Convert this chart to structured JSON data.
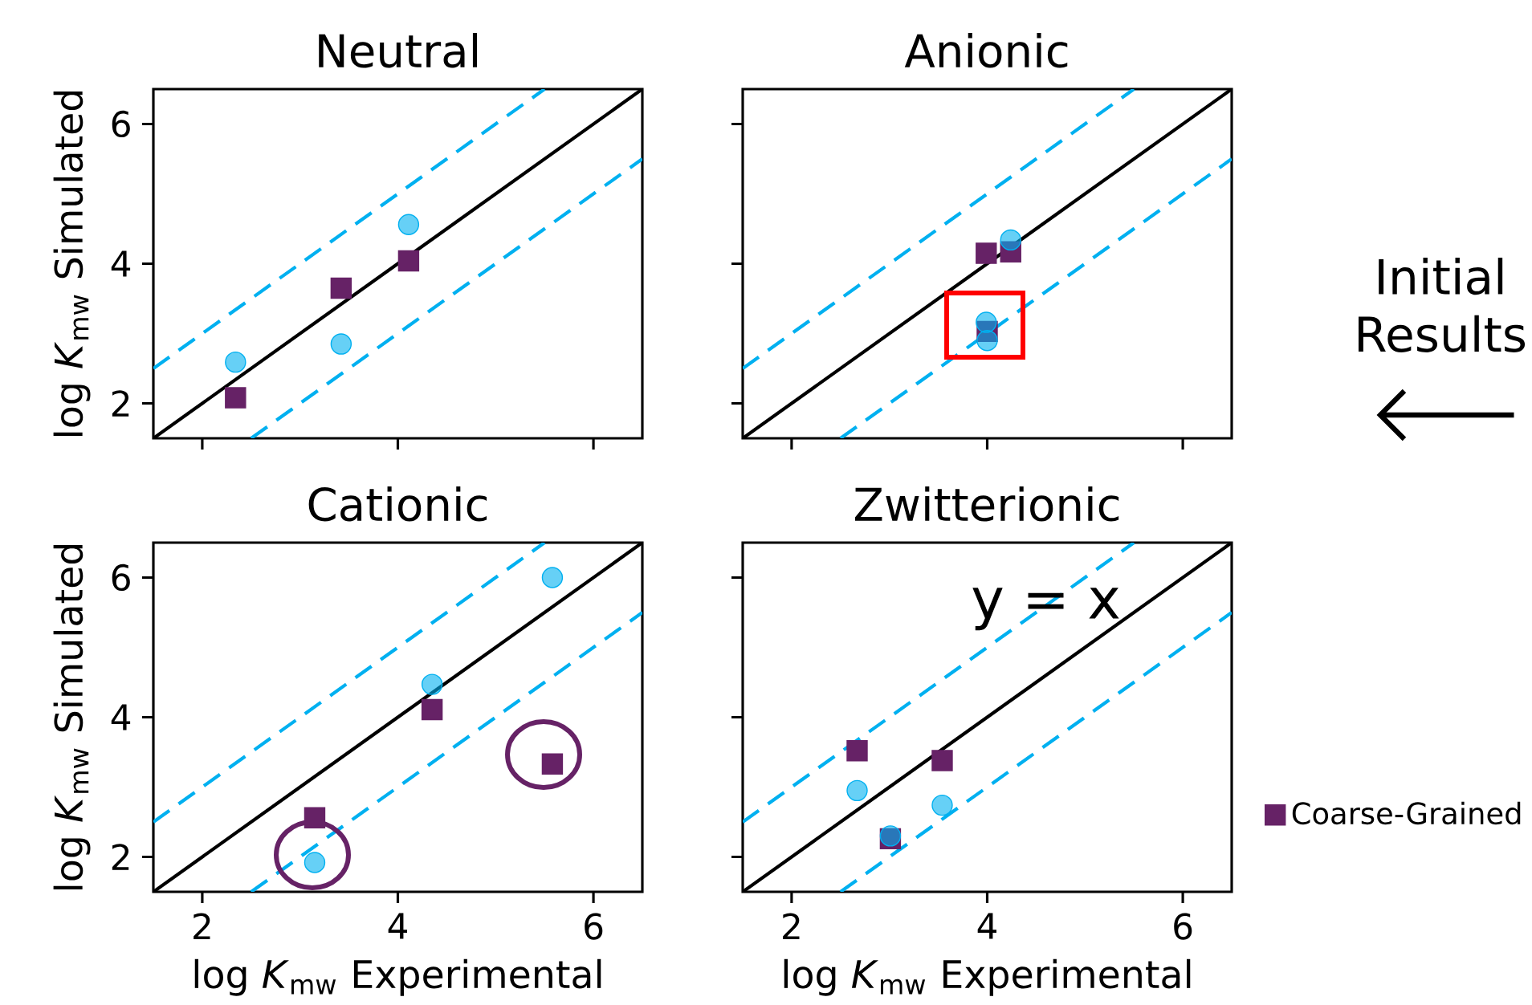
{
  "chart_data": [
    {
      "type": "scatter",
      "title": "Neutral",
      "ylabel": "log *K*$_{mw}$ Simulated",
      "xlim": [
        1.5,
        6.5
      ],
      "ylim": [
        1.5,
        6.5
      ],
      "xticks": [
        2,
        4,
        6
      ],
      "yticks": [
        2,
        4,
        6
      ],
      "tick_labels": "y",
      "series": [
        {
          "type": "line",
          "x": [
            1.5,
            6.5
          ],
          "values": [
            1.5,
            6.5
          ],
          "color": "#000000",
          "line_style": "solid"
        },
        {
          "type": "line",
          "x": [
            1.5,
            5.5
          ],
          "values": [
            2.5,
            6.5
          ],
          "color": "#00b0f0",
          "line_style": "dashed"
        },
        {
          "type": "line",
          "x": [
            2.5,
            6.5
          ],
          "values": [
            1.5,
            5.5
          ],
          "color": "#00b0f0",
          "line_style": "dashed"
        },
        {
          "x": [
            2.34,
            3.42,
            4.11
          ],
          "values": [
            2.08,
            3.65,
            4.04
          ],
          "color": "#662266",
          "marker": "square"
        },
        {
          "x": [
            2.34,
            3.42,
            4.11
          ],
          "values": [
            2.59,
            2.85,
            4.56
          ],
          "color": "#00b0f0",
          "marker": "circle"
        }
      ]
    },
    {
      "type": "scatter",
      "title": "Anionic",
      "xlim": [
        1.5,
        6.5
      ],
      "ylim": [
        1.5,
        6.5
      ],
      "xticks": [
        2,
        4,
        6
      ],
      "yticks": [
        2,
        4,
        6
      ],
      "tick_labels": false,
      "annotations": [
        "Initial Results"
      ],
      "series": [
        {
          "type": "line",
          "x": [
            1.5,
            6.5
          ],
          "values": [
            1.5,
            6.5
          ],
          "color": "#000000",
          "line_style": "solid"
        },
        {
          "type": "line",
          "x": [
            1.5,
            5.5
          ],
          "values": [
            2.5,
            6.5
          ],
          "color": "#00b0f0",
          "line_style": "dashed"
        },
        {
          "type": "line",
          "x": [
            2.5,
            6.5
          ],
          "values": [
            1.5,
            5.5
          ],
          "color": "#00b0f0",
          "line_style": "dashed"
        },
        {
          "x": [
            3.99,
            4.24,
            4.0
          ],
          "values": [
            4.15,
            4.17,
            3.03
          ],
          "color": "#662266",
          "marker": "square"
        },
        {
          "x": [
            4.24,
            3.99,
            4.0
          ],
          "values": [
            4.34,
            3.16,
            2.9
          ],
          "color": "#00b0f0",
          "marker": "circle"
        }
      ]
    },
    {
      "type": "scatter",
      "title": "Cationic",
      "xlabel": "log *K*$_{mw}$ Experimental",
      "ylabel": "log *K*$_{mw}$ Simulated",
      "xlim": [
        1.5,
        6.5
      ],
      "ylim": [
        1.5,
        6.5
      ],
      "xticks": [
        2,
        4,
        6
      ],
      "yticks": [
        2,
        4,
        6
      ],
      "series": [
        {
          "type": "line",
          "x": [
            1.5,
            6.5
          ],
          "values": [
            1.5,
            6.5
          ],
          "color": "#000000",
          "line_style": "solid"
        },
        {
          "type": "line",
          "x": [
            1.5,
            5.5
          ],
          "values": [
            2.5,
            6.5
          ],
          "color": "#00b0f0",
          "line_style": "dashed"
        },
        {
          "type": "line",
          "x": [
            2.5,
            6.5
          ],
          "values": [
            1.5,
            5.5
          ],
          "color": "#00b0f0",
          "line_style": "dashed"
        },
        {
          "x": [
            3.15,
            4.35,
            5.58
          ],
          "values": [
            2.56,
            4.11,
            3.33
          ],
          "color": "#662266",
          "marker": "square"
        },
        {
          "x": [
            3.15,
            4.35,
            5.58
          ],
          "values": [
            1.92,
            4.47,
            6.0
          ],
          "color": "#00b0f0",
          "marker": "circle"
        }
      ]
    },
    {
      "type": "scatter",
      "title": "Zwitterionic",
      "xlabel": "log *K*$_{mw}$ Experimental",
      "xlim": [
        1.5,
        6.5
      ],
      "ylim": [
        1.5,
        6.5
      ],
      "xticks": [
        2,
        4,
        6
      ],
      "yticks": [
        2,
        4,
        6
      ],
      "tick_labels": "x",
      "legend": "right",
      "annotations": [
        "y = x"
      ],
      "series": [
        {
          "type": "line",
          "x": [
            1.5,
            6.5
          ],
          "values": [
            1.5,
            6.5
          ],
          "color": "#000000",
          "line_style": "solid"
        },
        {
          "type": "line",
          "x": [
            1.5,
            5.5
          ],
          "values": [
            2.5,
            6.5
          ],
          "color": "#00b0f0",
          "line_style": "dashed"
        },
        {
          "type": "line",
          "x": [
            2.5,
            6.5
          ],
          "values": [
            1.5,
            5.5
          ],
          "color": "#00b0f0",
          "line_style": "dashed"
        },
        {
          "name": "Coarse-Grained",
          "x": [
            2.67,
            3.54,
            3.01
          ],
          "values": [
            3.52,
            3.38,
            2.26
          ],
          "color": "#662266",
          "marker": "square"
        },
        {
          "x": [
            2.67,
            3.54,
            3.01
          ],
          "values": [
            2.95,
            2.74,
            2.3
          ],
          "color": "#00b0f0",
          "marker": "circle"
        }
      ]
    }
  ]
}
